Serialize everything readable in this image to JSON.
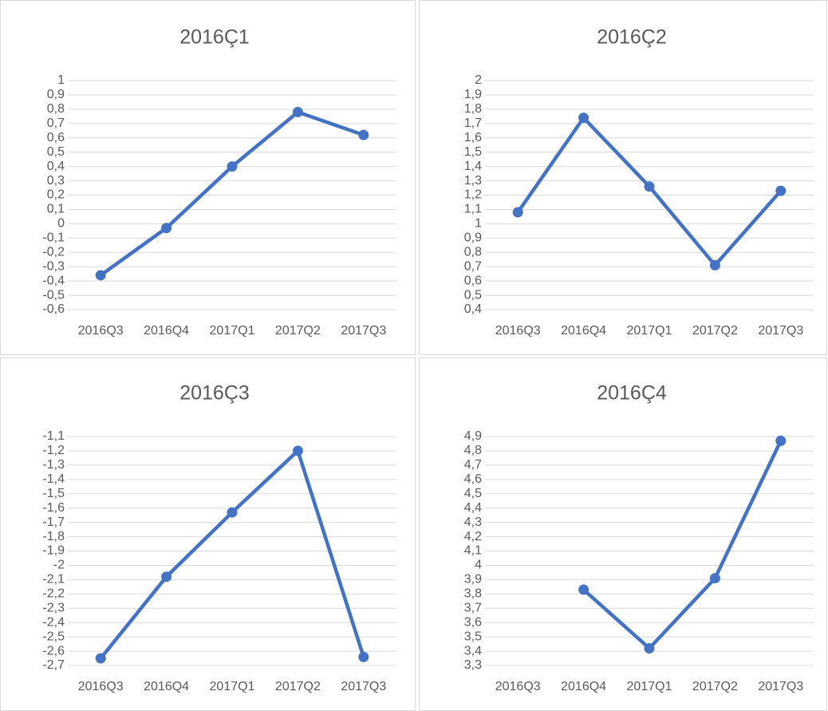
{
  "chart_data": [
    {
      "type": "line",
      "title": "2016Ç1",
      "categories": [
        "2016Q3",
        "2016Q4",
        "2017Q1",
        "2017Q2",
        "2017Q3"
      ],
      "series": [
        {
          "name": "2016Ç1",
          "color": "#4472c4",
          "values": [
            -0.36,
            -0.03,
            0.4,
            0.78,
            0.62
          ]
        }
      ],
      "ylim": [
        -0.6,
        1
      ],
      "grid": true,
      "yticks": [
        {
          "value": -0.6,
          "label": "-0,6"
        },
        {
          "value": -0.5,
          "label": "-0,5"
        },
        {
          "value": -0.4,
          "label": "-0,4"
        },
        {
          "value": -0.3,
          "label": "-0,3"
        },
        {
          "value": -0.2,
          "label": "-0,2"
        },
        {
          "value": -0.1,
          "label": "-0,1"
        },
        0,
        {
          "value": 0.1,
          "label": "0,1"
        },
        {
          "value": 0.2,
          "label": "0,2"
        },
        {
          "value": 0.3,
          "label": "0,3"
        },
        {
          "value": 0.4,
          "label": "0,4"
        },
        {
          "value": 0.5,
          "label": "0,5"
        },
        {
          "value": 0.6,
          "label": "0,6"
        },
        {
          "value": 0.7,
          "label": "0,7"
        },
        {
          "value": 0.8,
          "label": "0,8"
        },
        {
          "value": 0.9,
          "label": "0,9"
        },
        1
      ]
    },
    {
      "type": "line",
      "title": "2016Ç2",
      "categories": [
        "2016Q3",
        "2016Q4",
        "2017Q1",
        "2017Q2",
        "2017Q3"
      ],
      "series": [
        {
          "name": "2016Ç2",
          "color": "#4472c4",
          "values": [
            1.08,
            1.74,
            1.26,
            0.71,
            1.23
          ]
        }
      ],
      "ylim": [
        0.4,
        2
      ],
      "grid": true,
      "yticks": [
        {
          "value": 0.4,
          "label": "0,4"
        },
        {
          "value": 0.5,
          "label": "0,5"
        },
        {
          "value": 0.6,
          "label": "0,6"
        },
        {
          "value": 0.7,
          "label": "0,7"
        },
        {
          "value": 0.8,
          "label": "0,8"
        },
        {
          "value": 0.9,
          "label": "0,9"
        },
        1,
        {
          "value": 1.1,
          "label": "1,1"
        },
        {
          "value": 1.2,
          "label": "1,2"
        },
        {
          "value": 1.3,
          "label": "1,3"
        },
        {
          "value": 1.4,
          "label": "1,4"
        },
        {
          "value": 1.5,
          "label": "1,5"
        },
        {
          "value": 1.6,
          "label": "1,6"
        },
        {
          "value": 1.7,
          "label": "1,7"
        },
        {
          "value": 1.8,
          "label": "1,8"
        },
        {
          "value": 1.9,
          "label": "1,9"
        },
        2
      ]
    },
    {
      "type": "line",
      "title": "2016Ç3",
      "categories": [
        "2016Q3",
        "2016Q4",
        "2017Q1",
        "2017Q2",
        "2017Q3"
      ],
      "series": [
        {
          "name": "2016Ç3",
          "color": "#4472c4",
          "values": [
            -2.65,
            -2.08,
            -1.63,
            -1.2,
            -2.64
          ]
        }
      ],
      "ylim": [
        -2.7,
        -1.1
      ],
      "grid": true,
      "yticks": [
        {
          "value": -2.7,
          "label": "-2,7"
        },
        {
          "value": -2.6,
          "label": "-2,6"
        },
        {
          "value": -2.5,
          "label": "-2,5"
        },
        {
          "value": -2.4,
          "label": "-2,4"
        },
        {
          "value": -2.3,
          "label": "-2,3"
        },
        {
          "value": -2.2,
          "label": "-2,2"
        },
        {
          "value": -2.1,
          "label": "-2,1"
        },
        -2,
        {
          "value": -1.9,
          "label": "-1,9"
        },
        {
          "value": -1.8,
          "label": "-1,8"
        },
        {
          "value": -1.7,
          "label": "-1,7"
        },
        {
          "value": -1.6,
          "label": "-1,6"
        },
        {
          "value": -1.5,
          "label": "-1,5"
        },
        {
          "value": -1.4,
          "label": "-1,4"
        },
        {
          "value": -1.3,
          "label": "-1,3"
        },
        {
          "value": -1.2,
          "label": "-1,2"
        },
        {
          "value": -1.1,
          "label": "-1,1"
        }
      ]
    },
    {
      "type": "line",
      "title": "2016Ç4",
      "categories": [
        "2016Q3",
        "2016Q4",
        "2017Q1",
        "2017Q2",
        "2017Q3"
      ],
      "series": [
        {
          "name": "2016Ç4",
          "color": "#4472c4",
          "values": [
            null,
            3.83,
            3.42,
            3.91,
            4.87
          ]
        }
      ],
      "ylim": [
        3.3,
        4.9
      ],
      "grid": true,
      "yticks": [
        {
          "value": 3.3,
          "label": "3,3"
        },
        {
          "value": 3.4,
          "label": "3,4"
        },
        {
          "value": 3.5,
          "label": "3,5"
        },
        {
          "value": 3.6,
          "label": "3,6"
        },
        {
          "value": 3.7,
          "label": "3,7"
        },
        {
          "value": 3.8,
          "label": "3,8"
        },
        {
          "value": 3.9,
          "label": "3,9"
        },
        4,
        {
          "value": 4.1,
          "label": "4,1"
        },
        {
          "value": 4.2,
          "label": "4,2"
        },
        {
          "value": 4.3,
          "label": "4,3"
        },
        {
          "value": 4.4,
          "label": "4,4"
        },
        {
          "value": 4.5,
          "label": "4,5"
        },
        {
          "value": 4.6,
          "label": "4,6"
        },
        {
          "value": 4.7,
          "label": "4,7"
        },
        {
          "value": 4.8,
          "label": "4,8"
        },
        {
          "value": 4.9,
          "label": "4,9"
        }
      ]
    }
  ]
}
